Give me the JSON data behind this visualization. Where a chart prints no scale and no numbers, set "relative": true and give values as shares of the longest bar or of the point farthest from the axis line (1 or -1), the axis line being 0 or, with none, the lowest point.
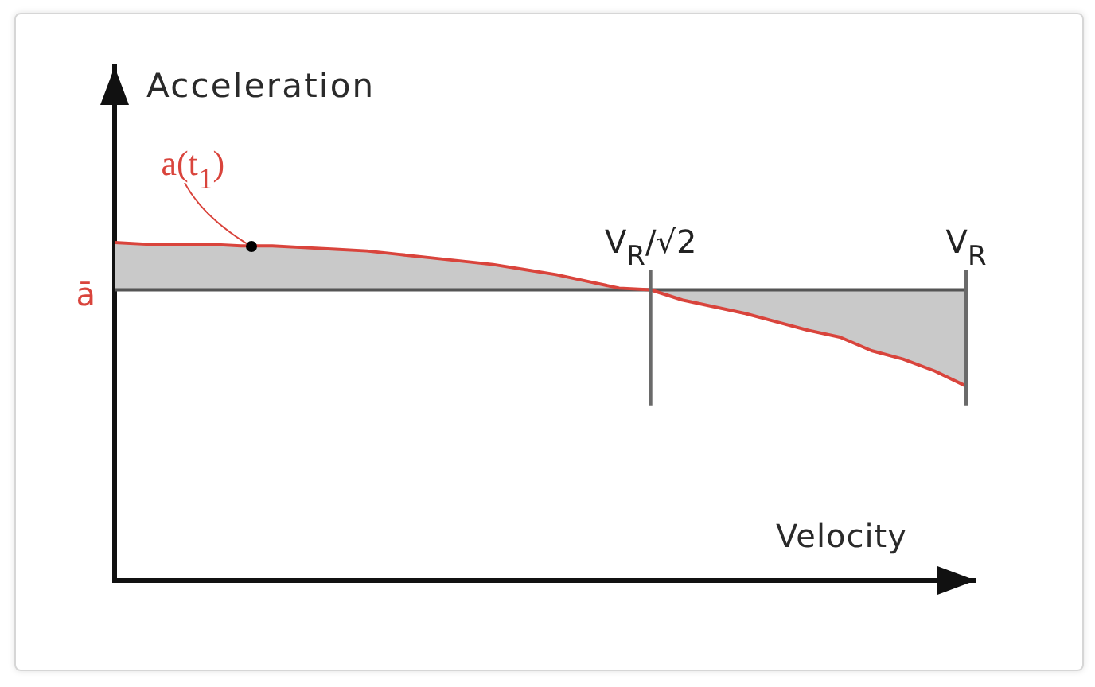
{
  "chart_data": {
    "type": "line",
    "xlabel": "Velocity",
    "ylabel": "Acceleration",
    "relative": true,
    "tick_labels": "x",
    "categories": [
      null,
      null,
      null,
      null,
      null,
      null,
      null,
      null,
      null,
      null,
      null,
      null,
      null,
      null,
      null,
      null,
      null,
      "V$_{R}$/√2",
      null,
      null,
      null,
      null,
      null,
      null,
      null,
      null,
      null,
      "V$_{R}$"
    ],
    "series": [
      {
        "color": "#d9443c",
        "values": [
          1,
          0.995,
          0.995,
          0.995,
          0.99,
          0.99,
          0.985,
          0.98,
          0.975,
          0.965,
          0.955,
          0.945,
          0.935,
          0.92,
          0.905,
          0.885,
          0.865,
          0.86,
          0.83,
          0.81,
          0.79,
          0.765,
          0.74,
          0.72,
          0.68,
          0.655,
          0.62,
          0.575
        ],
        "lower": [
          0.86,
          0.86,
          0.86,
          0.86,
          0.86,
          0.86,
          0.86,
          0.86,
          0.86,
          0.86,
          0.86,
          0.86,
          0.86,
          0.86,
          0.86,
          0.86,
          0.86,
          0.86,
          0.83,
          0.81,
          0.79,
          0.765,
          0.74,
          0.72,
          0.68,
          0.655,
          0.62,
          0.575
        ],
        "upper": [
          1,
          0.995,
          0.995,
          0.995,
          0.99,
          0.99,
          0.985,
          0.98,
          0.975,
          0.965,
          0.955,
          0.945,
          0.935,
          0.92,
          0.905,
          0.885,
          0.865,
          0.86,
          0.86,
          0.86,
          0.86,
          0.86,
          0.86,
          0.86,
          0.86,
          0.86,
          0.86,
          0.86
        ]
      },
      {
        "name": "ā",
        "color": "#555555",
        "values": [
          0.86,
          0.86,
          0.86,
          0.86,
          0.86,
          0.86,
          0.86,
          0.86,
          0.86,
          0.86,
          0.86,
          0.86,
          0.86,
          0.86,
          0.86,
          0.86,
          0.86,
          0.86,
          0.86,
          0.86,
          0.86,
          0.86,
          0.86,
          0.86,
          0.86,
          0.86,
          0.86,
          0.86
        ]
      }
    ],
    "ref_lines": [
      {
        "axis": "x",
        "value": "V$_{R}$/√2",
        "color": "#6a6a6a"
      },
      {
        "axis": "x",
        "value": "V$_{R}$",
        "color": "#6a6a6a"
      }
    ],
    "annotations": [
      "a(t$_{1}$)"
    ]
  }
}
